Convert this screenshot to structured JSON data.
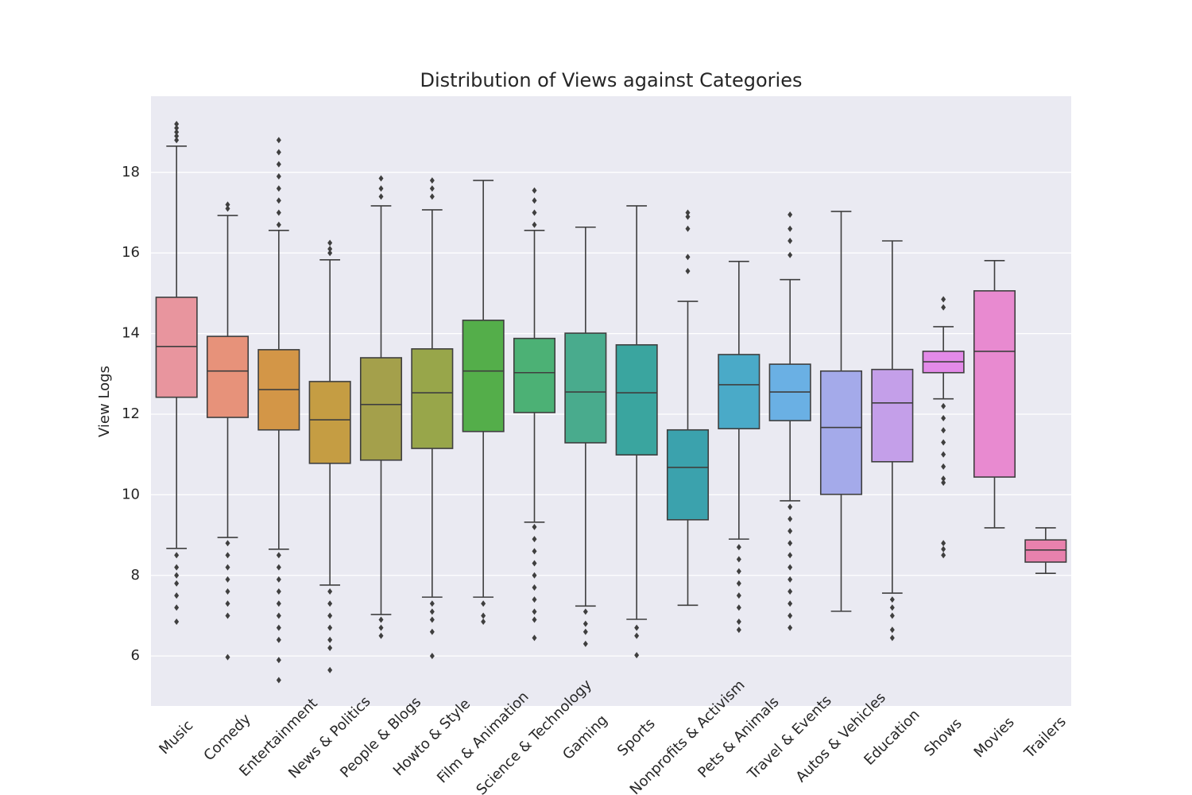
{
  "chart_data": {
    "type": "box",
    "title": "Distribution of Views against Categories",
    "y_label": "View Logs",
    "categories": [
      "Music",
      "Comedy",
      "Entertainment",
      "News & Politics",
      "People & Blogs",
      "Howto & Style",
      "Film & Animation",
      "Science & Technology",
      "Gaming",
      "Sports",
      "Nonprofits & Activism",
      "Pets & Animals",
      "Travel & Events",
      "Autos & Vehicles",
      "Education",
      "Shows",
      "Movies",
      "Trailers"
    ],
    "colors": [
      "#e8959e",
      "#e7927a",
      "#d39647",
      "#c59d43",
      "#a4a04b",
      "#98a64a",
      "#54ae4a",
      "#4cb175",
      "#49ab8d",
      "#3aa59f",
      "#3ba2ad",
      "#4aaac8",
      "#6ab0e4",
      "#a4aaea",
      "#c49fe9",
      "#e38ae8",
      "#e88ad0",
      "#e881ad"
    ],
    "boxes": [
      {
        "low": 8.67,
        "q1": 12.42,
        "median": 13.68,
        "q3": 14.9,
        "high": 18.65,
        "outliers": [
          19.2,
          19.1,
          19.0,
          18.9,
          18.8,
          8.5,
          8.2,
          8.0,
          7.8,
          7.5,
          7.2,
          6.85
        ]
      },
      {
        "low": 8.94,
        "q1": 11.92,
        "median": 13.07,
        "q3": 13.93,
        "high": 16.93,
        "outliers": [
          17.2,
          17.1,
          8.8,
          8.5,
          8.2,
          7.9,
          7.6,
          7.3,
          7.0,
          5.97
        ]
      },
      {
        "low": 8.65,
        "q1": 11.61,
        "median": 12.61,
        "q3": 13.6,
        "high": 16.56,
        "outliers": [
          18.8,
          18.5,
          18.2,
          17.9,
          17.6,
          17.3,
          17.0,
          16.7,
          8.5,
          8.2,
          7.9,
          7.6,
          7.3,
          7.0,
          6.7,
          6.4,
          5.9,
          5.4
        ]
      },
      {
        "low": 7.76,
        "q1": 10.78,
        "median": 11.86,
        "q3": 12.81,
        "high": 15.83,
        "outliers": [
          16.25,
          16.1,
          16.0,
          7.6,
          7.3,
          7.0,
          6.7,
          6.4,
          6.2,
          5.65
        ]
      },
      {
        "low": 7.03,
        "q1": 10.86,
        "median": 12.24,
        "q3": 13.4,
        "high": 17.17,
        "outliers": [
          17.85,
          17.6,
          17.4,
          6.9,
          6.7,
          6.5
        ]
      },
      {
        "low": 7.46,
        "q1": 11.15,
        "median": 12.53,
        "q3": 13.62,
        "high": 17.07,
        "outliers": [
          17.8,
          17.6,
          17.4,
          7.3,
          7.1,
          6.9,
          6.6,
          6.0
        ]
      },
      {
        "low": 7.46,
        "q1": 11.57,
        "median": 13.07,
        "q3": 14.33,
        "high": 17.8,
        "outliers": [
          7.3,
          7.0,
          6.85
        ]
      },
      {
        "low": 9.32,
        "q1": 12.04,
        "median": 13.03,
        "q3": 13.88,
        "high": 16.56,
        "outliers": [
          17.55,
          17.3,
          17.0,
          16.7,
          9.2,
          8.9,
          8.6,
          8.3,
          8.0,
          7.7,
          7.4,
          7.1,
          6.9,
          6.45
        ]
      },
      {
        "low": 7.24,
        "q1": 11.29,
        "median": 12.55,
        "q3": 14.01,
        "high": 16.64,
        "outliers": [
          7.1,
          6.8,
          6.6,
          6.3
        ]
      },
      {
        "low": 6.91,
        "q1": 10.99,
        "median": 12.53,
        "q3": 13.72,
        "high": 17.17,
        "outliers": [
          6.7,
          6.5,
          6.02
        ]
      },
      {
        "low": 7.26,
        "q1": 9.38,
        "median": 10.68,
        "q3": 11.61,
        "high": 14.8,
        "outliers": [
          17.0,
          16.9,
          16.6,
          15.9,
          15.55
        ]
      },
      {
        "low": 8.9,
        "q1": 11.64,
        "median": 12.73,
        "q3": 13.48,
        "high": 15.79,
        "outliers": [
          8.7,
          8.4,
          8.1,
          7.8,
          7.5,
          7.2,
          6.85,
          6.65
        ]
      },
      {
        "low": 9.85,
        "q1": 11.84,
        "median": 12.55,
        "q3": 13.24,
        "high": 15.34,
        "outliers": [
          16.95,
          16.6,
          16.3,
          15.95,
          9.7,
          9.4,
          9.1,
          8.8,
          8.5,
          8.2,
          7.9,
          7.6,
          7.3,
          7.0,
          6.7
        ]
      },
      {
        "low": 7.11,
        "q1": 10.01,
        "median": 11.67,
        "q3": 13.07,
        "high": 17.03,
        "outliers": []
      },
      {
        "low": 7.56,
        "q1": 10.82,
        "median": 12.28,
        "q3": 13.11,
        "high": 16.3,
        "outliers": [
          7.4,
          7.2,
          7.0,
          6.65,
          6.45
        ]
      },
      {
        "low": 12.38,
        "q1": 13.03,
        "median": 13.3,
        "q3": 13.56,
        "high": 14.17,
        "outliers": [
          14.85,
          14.65,
          12.2,
          11.9,
          11.6,
          11.3,
          11.0,
          10.7,
          10.4,
          10.3,
          8.8,
          8.65,
          8.5
        ]
      },
      {
        "low": 9.18,
        "q1": 10.44,
        "median": 13.56,
        "q3": 15.06,
        "high": 15.81,
        "outliers": []
      },
      {
        "low": 8.05,
        "q1": 8.33,
        "median": 8.63,
        "q3": 8.88,
        "high": 9.18,
        "outliers": []
      }
    ],
    "ylim": [
      4.76,
      19.89
    ],
    "yticks": [
      6,
      8,
      10,
      12,
      14,
      16,
      18
    ],
    "grid": true
  }
}
